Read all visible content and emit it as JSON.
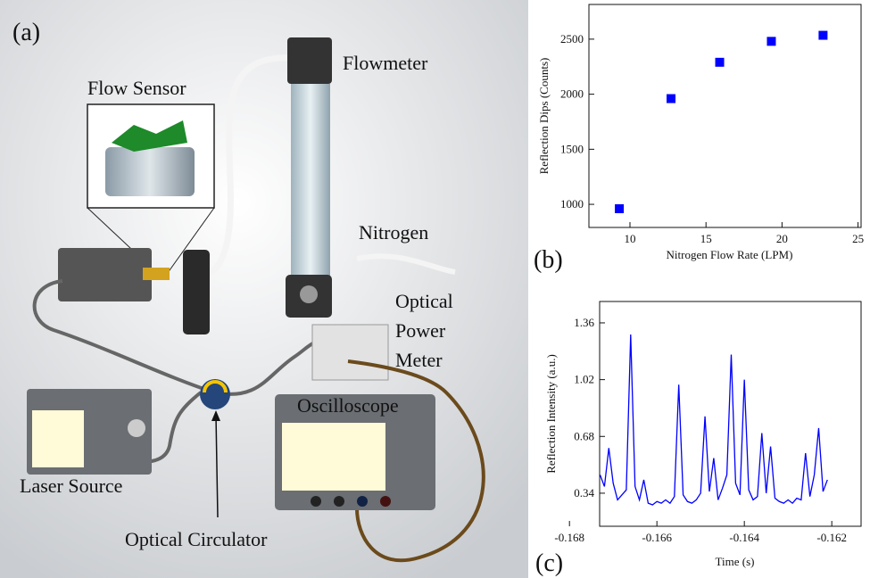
{
  "diagram": {
    "panel_label": "(a)",
    "labels": {
      "flow_sensor": "Flow Sensor",
      "flowmeter": "Flowmeter",
      "nitrogen": "Nitrogen",
      "optical_power_meter": [
        "Optical",
        "Power",
        "Meter"
      ],
      "oscilloscope": "Oscilloscope",
      "laser_source": "Laser Source",
      "optical_circulator": "Optical Circulator"
    }
  },
  "chart_data": [
    {
      "type": "scatter",
      "panel_label": "(b)",
      "x_label": "Nitrogen Flow Rate (LPM)",
      "y_label": "Reflection Dips (Counts)",
      "color": "#0000ff",
      "x": [
        9.3,
        12.7,
        15.9,
        19.3,
        22.7
      ],
      "values": [
        960,
        1960,
        2290,
        2480,
        2535
      ],
      "xlim": [
        7.3,
        25.2
      ],
      "ylim": [
        790,
        2815
      ],
      "xticks": [
        10,
        15,
        20,
        25
      ],
      "yticks": [
        1000,
        1500,
        2000,
        2500
      ]
    },
    {
      "type": "line",
      "panel_label": "(c)",
      "x_label": "Time (s)",
      "y_label": "Reflection Intensity (a.u.)",
      "color": "#0000ff",
      "x": [
        -0.1673,
        -0.1672,
        -0.1671,
        -0.167,
        -0.1669,
        -0.1668,
        -0.1667,
        -0.1666,
        -0.1665,
        -0.1664,
        -0.1663,
        -0.1662,
        -0.1661,
        -0.166,
        -0.1659,
        -0.1658,
        -0.1657,
        -0.1656,
        -0.1655,
        -0.1654,
        -0.1653,
        -0.1652,
        -0.1651,
        -0.165,
        -0.1649,
        -0.1648,
        -0.1647,
        -0.1646,
        -0.1645,
        -0.1644,
        -0.1643,
        -0.1642,
        -0.1641,
        -0.164,
        -0.1639,
        -0.1638,
        -0.1637,
        -0.1636,
        -0.1635,
        -0.1634,
        -0.1633,
        -0.1632,
        -0.1631,
        -0.163,
        -0.1629,
        -0.1628,
        -0.1627,
        -0.1626,
        -0.1625,
        -0.1624,
        -0.1623,
        -0.1622,
        -0.1621
      ],
      "values": [
        0.45,
        0.38,
        0.61,
        0.4,
        0.3,
        0.33,
        0.36,
        1.29,
        0.38,
        0.3,
        0.42,
        0.28,
        0.27,
        0.29,
        0.28,
        0.3,
        0.28,
        0.32,
        0.99,
        0.33,
        0.29,
        0.28,
        0.3,
        0.34,
        0.8,
        0.35,
        0.55,
        0.3,
        0.37,
        0.45,
        1.17,
        0.4,
        0.33,
        1.02,
        0.36,
        0.3,
        0.32,
        0.7,
        0.34,
        0.62,
        0.31,
        0.29,
        0.28,
        0.3,
        0.28,
        0.31,
        0.3,
        0.58,
        0.32,
        0.45,
        0.73,
        0.35,
        0.42
      ],
      "xlim": [
        -0.16731,
        -0.16133
      ],
      "ylim": [
        0.142,
        1.488
      ],
      "xticks": [
        -0.168,
        -0.166,
        -0.164,
        -0.162
      ],
      "yticks": [
        0.34,
        0.68,
        1.02,
        1.36
      ]
    }
  ]
}
